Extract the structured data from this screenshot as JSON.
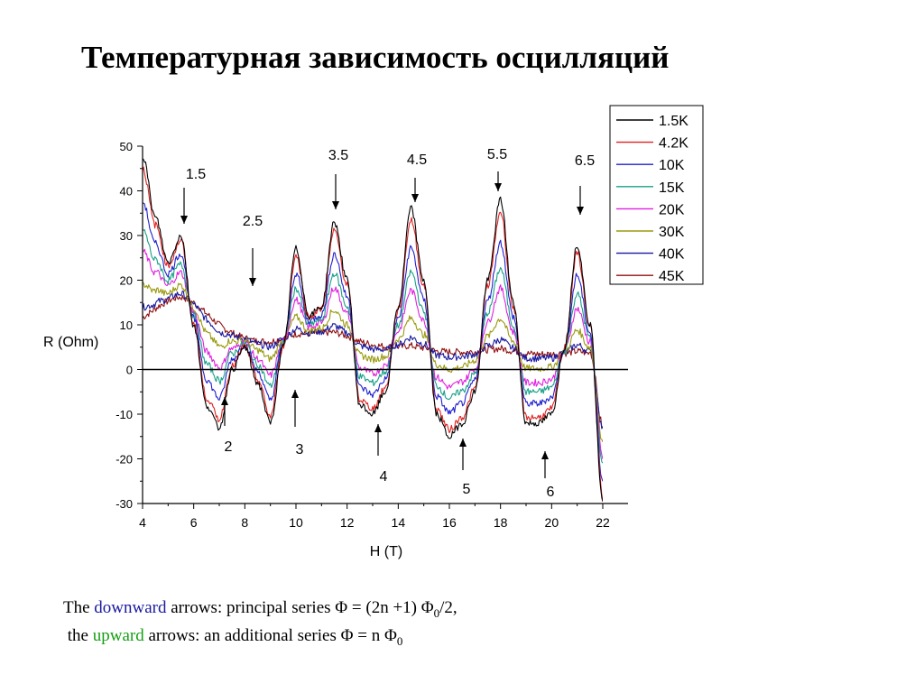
{
  "title": "Температурная зависимость осцилляций",
  "caption": {
    "line1_pre": "The ",
    "line1_keyword": "downward",
    "line1_mid": " arrows: principal series  Φ = (2n +1) Φ",
    "line1_sub": "0",
    "line1_post": "/2,",
    "line2_pre": " the ",
    "line2_keyword": "upward",
    "line2_mid": " arrows: an additional series Φ = n Φ",
    "line2_sub": "0",
    "keyword_colors": {
      "downward": "#1a1aa0",
      "upward": "#14a014"
    }
  },
  "chart_data": {
    "type": "line",
    "xlabel": "H (T)",
    "ylabel": "R (Ohm)",
    "xlim": [
      4,
      22
    ],
    "ylim": [
      -30,
      50
    ],
    "xticks": [
      4,
      6,
      8,
      10,
      12,
      14,
      16,
      18,
      20,
      22
    ],
    "yticks": [
      -30,
      -20,
      -10,
      0,
      10,
      20,
      30,
      40,
      50
    ],
    "grid": false,
    "zero_line": true,
    "legend_position": "top-right outside",
    "series": [
      {
        "name": "1.5K",
        "color": "#000000",
        "amp": 1.0,
        "base": 0
      },
      {
        "name": "4.2K",
        "color": "#e02020",
        "amp": 0.92,
        "base": 0.5
      },
      {
        "name": "10K",
        "color": "#2020d0",
        "amp": 0.72,
        "base": 1
      },
      {
        "name": "15K",
        "color": "#18a088",
        "amp": 0.55,
        "base": 1.5
      },
      {
        "name": "20K",
        "color": "#e020e0",
        "amp": 0.42,
        "base": 2
      },
      {
        "name": "30K",
        "color": "#9a9a10",
        "amp": 0.22,
        "base": 3
      },
      {
        "name": "40K",
        "color": "#1818a0",
        "amp": 0.08,
        "base": 4
      },
      {
        "name": "45K",
        "color": "#901010",
        "amp": 0.02,
        "base": 4.5
      }
    ],
    "reference_curve_1_5K": {
      "x": [
        4.0,
        4.5,
        5.0,
        5.5,
        6.0,
        6.5,
        7.0,
        7.5,
        8.0,
        8.5,
        9.0,
        9.5,
        10.0,
        10.5,
        11.0,
        11.5,
        12.0,
        12.5,
        13.0,
        13.5,
        14.0,
        14.5,
        15.0,
        15.5,
        16.0,
        16.5,
        17.0,
        17.5,
        18.0,
        18.5,
        19.0,
        19.5,
        20.0,
        20.5,
        21.0,
        21.5,
        22.0
      ],
      "y": [
        48,
        34,
        24,
        30,
        10,
        -8,
        -13,
        0,
        5,
        -3,
        -12,
        5,
        27,
        12,
        14,
        33,
        20,
        -8,
        -10,
        -5,
        14,
        36,
        20,
        -10,
        -15,
        -12,
        -5,
        20,
        38,
        15,
        -12,
        -12,
        -10,
        5,
        28,
        10,
        -30
      ]
    },
    "arrows_down": [
      {
        "label": "1.5",
        "x": 5.6
      },
      {
        "label": "2.5",
        "x": 8.3
      },
      {
        "label": "3.5",
        "x": 11.5
      },
      {
        "label": "4.5",
        "x": 14.6
      },
      {
        "label": "5.5",
        "x": 17.9
      },
      {
        "label": "6.5",
        "x": 21.1
      }
    ],
    "arrows_up": [
      {
        "label": "2",
        "x": 7.2
      },
      {
        "label": "3",
        "x": 9.9
      },
      {
        "label": "4",
        "x": 13.2
      },
      {
        "label": "5",
        "x": 16.6
      },
      {
        "label": "6",
        "x": 19.8
      }
    ]
  }
}
